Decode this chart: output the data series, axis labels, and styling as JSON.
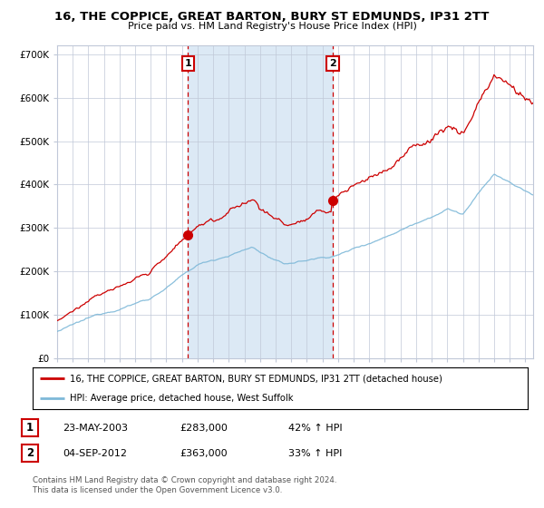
{
  "title": "16, THE COPPICE, GREAT BARTON, BURY ST EDMUNDS, IP31 2TT",
  "subtitle": "Price paid vs. HM Land Registry's House Price Index (HPI)",
  "legend_line1": "16, THE COPPICE, GREAT BARTON, BURY ST EDMUNDS, IP31 2TT (detached house)",
  "legend_line2": "HPI: Average price, detached house, West Suffolk",
  "purchase1_date": "23-MAY-2003",
  "purchase1_price": 283000,
  "purchase1_hpi": "42% ↑ HPI",
  "purchase1_label": "1",
  "purchase2_date": "04-SEP-2012",
  "purchase2_price": 363000,
  "purchase2_hpi": "33% ↑ HPI",
  "purchase2_label": "2",
  "footer": "Contains HM Land Registry data © Crown copyright and database right 2024.\nThis data is licensed under the Open Government Licence v3.0.",
  "hpi_color": "#7db8d8",
  "price_color": "#cc0000",
  "bg_color": "#ffffff",
  "plot_bg": "#ffffff",
  "shade_color": "#dce9f5",
  "grid_color": "#c0c8d8",
  "ylim": [
    0,
    720000
  ],
  "yticks": [
    0,
    100000,
    200000,
    300000,
    400000,
    500000,
    600000,
    700000
  ],
  "start_year": 1995,
  "end_year": 2025,
  "t_p1": 2003.375,
  "t_p2": 2012.667
}
